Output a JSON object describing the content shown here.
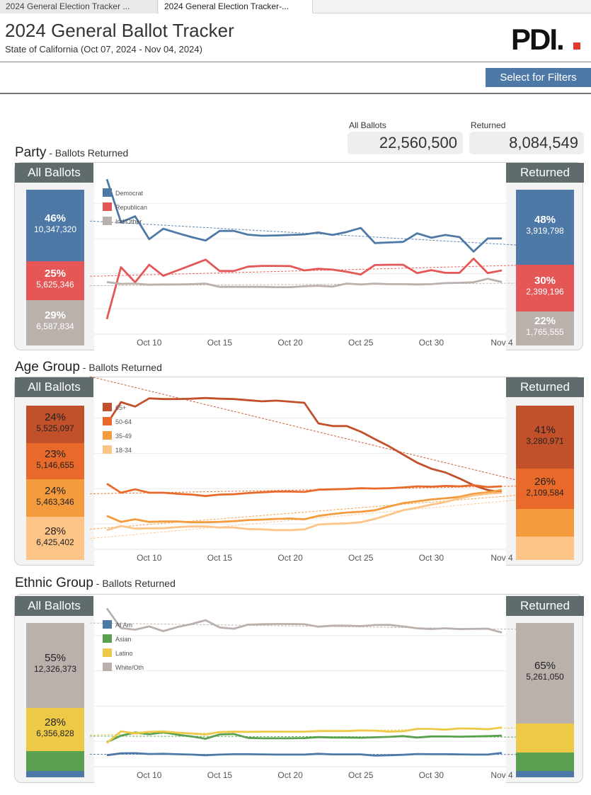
{
  "tabs": [
    {
      "label": "2024 General Election Tracker ..."
    },
    {
      "label": "2024 General Election Tracker-..."
    }
  ],
  "header": {
    "title": "2024 General Ballot Tracker",
    "subtitle": "State of California (Oct 07, 2024 - Nov 04, 2024)",
    "logo_text": "PDI."
  },
  "filter_button": "Select for Filters",
  "totals": {
    "all_label": "All Ballots",
    "all_value": "22,560,500",
    "returned_label": "Returned",
    "returned_value": "8,084,549"
  },
  "x_ticks": [
    "Oct 10",
    "Oct 15",
    "Oct 20",
    "Oct 25",
    "Oct 30",
    "Nov 4"
  ],
  "sections": [
    {
      "title": "Party",
      "subtitle": " - Ballots Returned",
      "left_header": "All Ballots",
      "right_header": "Returned",
      "left_bars": [
        {
          "pct": "46%",
          "count": "10,347,320",
          "share": 46,
          "color": "#4e79a7"
        },
        {
          "pct": "25%",
          "count": "5,625,346",
          "share": 25,
          "color": "#e45756"
        },
        {
          "pct": "29%",
          "count": "6,587,834",
          "share": 29,
          "color": "#bab0ac"
        }
      ],
      "right_bars": [
        {
          "pct": "48%",
          "count": "3,919,798",
          "share": 48,
          "color": "#4e79a7"
        },
        {
          "pct": "30%",
          "count": "2,399,196",
          "share": 30,
          "color": "#e45756"
        },
        {
          "pct": "22%",
          "count": "1,765,555",
          "share": 22,
          "color": "#bab0ac"
        }
      ]
    },
    {
      "title": "Age Group",
      "subtitle": " - Ballots Returned",
      "left_header": "All Ballots",
      "right_header": "Returned",
      "left_bars": [
        {
          "pct": "24%",
          "count": "5,525,097",
          "share": 24,
          "color": "#c2502a",
          "dark": true
        },
        {
          "pct": "23%",
          "count": "5,146,655",
          "share": 23,
          "color": "#e8692a",
          "dark": true
        },
        {
          "pct": "24%",
          "count": "5,463,346",
          "share": 24,
          "color": "#f39b3d",
          "dark": true
        },
        {
          "pct": "28%",
          "count": "6,425,402",
          "share": 28,
          "color": "#fdc487",
          "dark": true
        }
      ],
      "right_bars": [
        {
          "pct": "41%",
          "count": "3,280,971",
          "share": 41,
          "color": "#c2502a",
          "dark": true
        },
        {
          "pct": "26%",
          "count": "2,109,584",
          "share": 26,
          "color": "#e8692a",
          "dark": true
        },
        {
          "pct": "",
          "count": "",
          "share": 18,
          "color": "#f39b3d"
        },
        {
          "pct": "",
          "count": "",
          "share": 15,
          "color": "#fdc487"
        }
      ]
    },
    {
      "title": "Ethnic Group",
      "subtitle": " - Ballots Returned",
      "left_header": "All Ballots",
      "right_header": "Returned",
      "left_bars": [
        {
          "pct": "55%",
          "count": "12,326,373",
          "share": 55,
          "color": "#bab0ac",
          "dark": true
        },
        {
          "pct": "28%",
          "count": "6,356,828",
          "share": 28,
          "color": "#edc948",
          "dark": true
        },
        {
          "pct": "",
          "count": "",
          "share": 13,
          "color": "#59a14f"
        },
        {
          "pct": "",
          "count": "",
          "share": 4,
          "color": "#4e79a7"
        }
      ],
      "right_bars": [
        {
          "pct": "65%",
          "count": "5,261,050",
          "share": 65,
          "color": "#bab0ac",
          "dark": true
        },
        {
          "pct": "",
          "count": "",
          "share": 19,
          "color": "#edc948"
        },
        {
          "pct": "",
          "count": "",
          "share": 12,
          "color": "#59a14f"
        },
        {
          "pct": "",
          "count": "",
          "share": 4,
          "color": "#4e79a7"
        }
      ]
    }
  ],
  "chart_data": [
    {
      "type": "line",
      "title": "Party",
      "subtitle": "Ballots Returned",
      "x_range": [
        "Oct 07, 2024",
        "Nov 04, 2024"
      ],
      "x_ticks": [
        "Oct 10",
        "Oct 15",
        "Oct 20",
        "Oct 25",
        "Oct 30",
        "Nov 4"
      ],
      "ylim": [
        0,
        100
      ],
      "y_unit": "percent of daily returns",
      "trendlines": true,
      "grid": "horizontal",
      "legend_position": "top-left",
      "series": [
        {
          "name": "Democrat",
          "color": "#4e79a7",
          "values": [
            63.4,
            47.4,
            49.6,
            41.1,
            45.0,
            43.4,
            41.9,
            40.6,
            44.2,
            44.2,
            42.8,
            42.4,
            42.5,
            42.7,
            42.9,
            43.6,
            42.7,
            43.8,
            45.3,
            39.7,
            39.9,
            40.1,
            43.3,
            41.7,
            42.7,
            41.9,
            36.5,
            41.4,
            41.4
          ]
        },
        {
          "name": "Republican",
          "color": "#e45756",
          "values": [
            11.4,
            30.7,
            25.1,
            31.6,
            27.5,
            29.5,
            31.5,
            33.5,
            29.3,
            29.3,
            30.9,
            31.2,
            31.2,
            31.1,
            29.5,
            30.1,
            29.8,
            29.0,
            28.0,
            31.5,
            31.6,
            31.6,
            28.5,
            29.6,
            28.6,
            28.6,
            33.9,
            28.5,
            29.5
          ]
        },
        {
          "name": "Ind/Other",
          "color": "#bab0ac",
          "values": [
            25.2,
            24.5,
            24.6,
            24.2,
            24.3,
            24.3,
            24.4,
            24.6,
            23.4,
            23.4,
            23.4,
            23.4,
            23.3,
            23.3,
            23.6,
            23.8,
            23.5,
            24.6,
            24.3,
            24.6,
            24.4,
            24.4,
            24.3,
            24.4,
            24.8,
            24.9,
            25.1,
            26.4,
            25.2
          ]
        }
      ]
    },
    {
      "type": "line",
      "title": "Age Group",
      "subtitle": "Ballots Returned",
      "x_range": [
        "Oct 07, 2024",
        "Nov 04, 2024"
      ],
      "x_ticks": [
        "Oct 10",
        "Oct 15",
        "Oct 20",
        "Oct 25",
        "Oct 30",
        "Nov 4"
      ],
      "ylim": [
        0,
        100
      ],
      "y_unit": "percent of daily returns",
      "trendlines": true,
      "grid": "horizontal",
      "legend_position": "top-left",
      "series": [
        {
          "name": "65+",
          "color": "#c2502a",
          "values": [
            39.4,
            45.3,
            44.1,
            46.3,
            46.1,
            46.1,
            46.2,
            46.4,
            46.2,
            46.1,
            45.8,
            45.5,
            45.7,
            45.4,
            45.1,
            39.6,
            38.9,
            38.9,
            37.4,
            35.4,
            33.5,
            31.3,
            29.1,
            27.5,
            26.5,
            24.9,
            23.1,
            21.8,
            21.2
          ]
        },
        {
          "name": "50-64",
          "color": "#e8692a",
          "values": [
            23.5,
            21.1,
            22.0,
            21.1,
            21.1,
            20.8,
            20.6,
            20.2,
            20.6,
            20.7,
            21.0,
            21.2,
            21.4,
            21.4,
            21.3,
            21.9,
            22.0,
            22.1,
            22.3,
            22.2,
            22.3,
            22.5,
            22.8,
            22.7,
            22.9,
            22.8,
            23.1,
            22.6,
            22.8
          ]
        },
        {
          "name": "35-49",
          "color": "#f39b3d",
          "values": [
            14.9,
            13.3,
            14.0,
            13.3,
            13.4,
            13.4,
            13.2,
            13.2,
            13.3,
            13.5,
            13.8,
            13.9,
            14.1,
            14.2,
            14.0,
            14.9,
            15.4,
            15.8,
            16.0,
            16.4,
            17.4,
            18.3,
            18.8,
            19.3,
            19.6,
            20.0,
            20.8,
            21.2,
            21.8
          ]
        },
        {
          "name": "18-34",
          "color": "#fdc487",
          "values": [
            11.1,
            12.2,
            11.5,
            11.6,
            11.6,
            11.9,
            12.1,
            12.1,
            11.8,
            11.8,
            11.4,
            11.3,
            11.1,
            11.1,
            11.3,
            12.6,
            12.8,
            12.9,
            13.2,
            14.1,
            15.2,
            16.4,
            17.1,
            17.9,
            18.6,
            19.6,
            20.4,
            20.8,
            21.1
          ]
        }
      ]
    },
    {
      "type": "line",
      "title": "Ethnic Group",
      "subtitle": "Ballots Returned",
      "x_range": [
        "Oct 07, 2024",
        "Nov 04, 2024"
      ],
      "x_ticks": [
        "Oct 10",
        "Oct 15",
        "Oct 20",
        "Oct 25",
        "Oct 30",
        "Nov 4"
      ],
      "ylim": [
        0,
        100
      ],
      "y_unit": "percent of daily returns",
      "trendlines": true,
      "grid": "horizontal",
      "legend_position": "top-left",
      "series": [
        {
          "name": "Af Am",
          "color": "#4e79a7",
          "values": [
            3.6,
            4.5,
            4.6,
            4.2,
            4.3,
            4.1,
            3.9,
            3.6,
            3.9,
            4.1,
            4.1,
            4.0,
            3.9,
            3.9,
            3.9,
            4.3,
            4.0,
            4.0,
            4.0,
            3.4,
            3.6,
            3.8,
            4.2,
            4.1,
            4.1,
            4.0,
            3.9,
            3.9,
            4.7
          ]
        },
        {
          "name": "Asian",
          "color": "#59a14f",
          "values": [
            10.1,
            13.3,
            14.9,
            14.0,
            15.0,
            13.8,
            12.9,
            11.8,
            13.9,
            14.1,
            12.2,
            12.0,
            12.0,
            12.0,
            12.1,
            12.6,
            12.4,
            12.4,
            12.3,
            12.5,
            12.7,
            13.1,
            12.4,
            12.9,
            12.9,
            12.8,
            12.9,
            13.1,
            13.3
          ]
        },
        {
          "name": "Latino",
          "color": "#edc948",
          "values": [
            9.7,
            15.4,
            14.5,
            15.2,
            15.4,
            14.8,
            14.4,
            13.9,
            15.1,
            15.3,
            15.2,
            15.3,
            15.3,
            15.3,
            15.3,
            15.6,
            15.6,
            15.6,
            15.9,
            15.8,
            15.3,
            15.5,
            16.7,
            16.7,
            16.3,
            16.9,
            16.8,
            16.5,
            17.4
          ]
        },
        {
          "name": "White/Oth",
          "color": "#bab0ac",
          "values": [
            76.6,
            66.8,
            66.0,
            67.6,
            65.3,
            67.3,
            68.8,
            70.7,
            67.1,
            66.5,
            68.5,
            68.7,
            68.8,
            68.8,
            68.7,
            67.5,
            68.0,
            68.0,
            67.8,
            68.3,
            68.4,
            67.6,
            66.7,
            66.3,
            66.7,
            66.3,
            66.4,
            66.5,
            64.6
          ]
        }
      ]
    }
  ]
}
